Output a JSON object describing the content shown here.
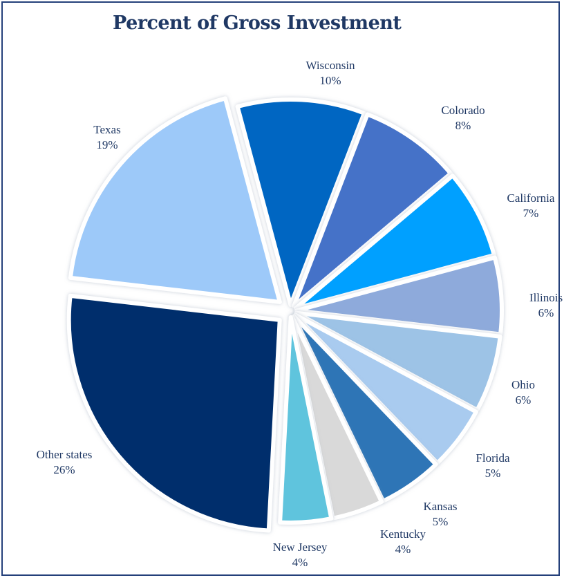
{
  "chart_data": {
    "type": "pie",
    "title": "Percent of Gross Investment",
    "slices": [
      {
        "label": "Wisconsin",
        "value_label": "10%",
        "value": 10,
        "color": "#0066c2"
      },
      {
        "label": "Colorado",
        "value_label": "8%",
        "value": 8,
        "color": "#4472c8"
      },
      {
        "label": "California",
        "value_label": "7%",
        "value": 7,
        "color": "#00a0ff"
      },
      {
        "label": "Illinois",
        "value_label": "6%",
        "value": 6,
        "color": "#8eaadb"
      },
      {
        "label": "Ohio",
        "value_label": "6%",
        "value": 6,
        "color": "#9dc3e6"
      },
      {
        "label": "Florida",
        "value_label": "5%",
        "value": 5,
        "color": "#a9cbef"
      },
      {
        "label": "Kansas",
        "value_label": "5%",
        "value": 5,
        "color": "#2e75b6"
      },
      {
        "label": "Kentucky",
        "value_label": "4%",
        "value": 4,
        "color": "#d9d9d9"
      },
      {
        "label": "New Jersey",
        "value_label": "4%",
        "value": 4,
        "color": "#5fc4dd"
      },
      {
        "label": "Other states",
        "value_label": "26%",
        "value": 26,
        "color": "#002f6c"
      },
      {
        "label": "Texas",
        "value_label": "19%",
        "value": 19,
        "color": "#9dc9f9"
      }
    ],
    "start_angle_deg": -15
  }
}
